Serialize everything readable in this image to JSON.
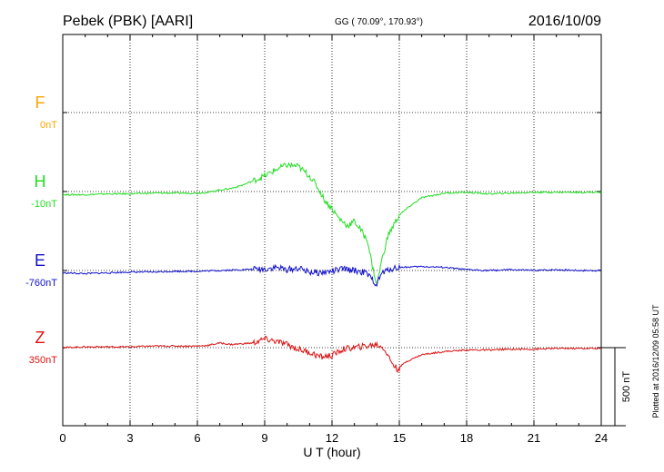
{
  "header": {
    "station": "Pebek (PBK)  [AARI]",
    "coords": "GG ( 70.09°, 170.93°)",
    "date": "2016/10/09"
  },
  "footer": {
    "plotted": "Plotted at 2016/12/09 05:58 UT",
    "scale_label": "500 nT"
  },
  "chart_data": {
    "type": "line",
    "xlabel": "U T (hour)",
    "xlim": [
      0,
      24
    ],
    "x_ticks": [
      "0",
      "3",
      "6",
      "9",
      "12",
      "15",
      "18",
      "21",
      "24"
    ],
    "scale_bar_nT": 500,
    "grid": true,
    "series": [
      {
        "name": "F",
        "baseline_label": "0nT",
        "color": "#ffa500",
        "x": [],
        "values": []
      },
      {
        "name": "H",
        "baseline_label": "-10nT",
        "color": "#22dd22",
        "x": [
          0,
          1,
          2,
          3,
          4,
          5,
          6,
          6.5,
          7,
          7.5,
          8,
          8.5,
          9,
          9.5,
          10,
          10.5,
          11,
          11.3,
          11.7,
          12,
          12.3,
          12.7,
          13,
          13.3,
          13.6,
          13.8,
          14,
          14.2,
          14.5,
          15,
          15.5,
          16,
          17,
          18,
          19,
          20,
          21,
          22,
          23,
          24
        ],
        "values": [
          -20,
          -20,
          -15,
          -15,
          -10,
          -10,
          -10,
          -5,
          10,
          20,
          40,
          70,
          100,
          140,
          170,
          160,
          100,
          40,
          -60,
          -110,
          -170,
          -220,
          -190,
          -250,
          -320,
          -480,
          -600,
          -450,
          -280,
          -150,
          -90,
          -40,
          -10,
          -5,
          -15,
          -10,
          -5,
          -5,
          -5,
          -5
        ]
      },
      {
        "name": "E",
        "baseline_label": "-760nT",
        "color": "#1111cc",
        "x": [
          0,
          1,
          2,
          3,
          4,
          5,
          6,
          7,
          8,
          9,
          9.5,
          10,
          10.5,
          11,
          11.5,
          12,
          12.5,
          13,
          13.5,
          14,
          14.2,
          14.6,
          15,
          16,
          17,
          18,
          19,
          20,
          21,
          22,
          23,
          24
        ],
        "values": [
          -15,
          -20,
          -15,
          -10,
          -10,
          -5,
          -5,
          0,
          5,
          10,
          20,
          5,
          15,
          -10,
          -15,
          -5,
          10,
          0,
          -15,
          -90,
          -20,
          10,
          20,
          25,
          20,
          5,
          0,
          5,
          0,
          5,
          0,
          0
        ]
      },
      {
        "name": "Z",
        "baseline_label": "350nT",
        "color": "#dd1111",
        "x": [
          0,
          1,
          2,
          3,
          4,
          5,
          6,
          6.5,
          7,
          7.5,
          8,
          8.5,
          9,
          9.5,
          10,
          10.5,
          11,
          11.5,
          12,
          12.5,
          13,
          13.5,
          14,
          14.3,
          14.6,
          14.9,
          15.3,
          16,
          17,
          18,
          19,
          20,
          21,
          22,
          23,
          24
        ],
        "values": [
          0,
          5,
          5,
          5,
          10,
          10,
          10,
          15,
          30,
          20,
          25,
          30,
          55,
          40,
          20,
          -10,
          -30,
          -60,
          -50,
          -10,
          0,
          10,
          20,
          0,
          -80,
          -140,
          -90,
          -45,
          -25,
          -15,
          -15,
          -10,
          -10,
          -5,
          -5,
          -5
        ]
      }
    ]
  }
}
